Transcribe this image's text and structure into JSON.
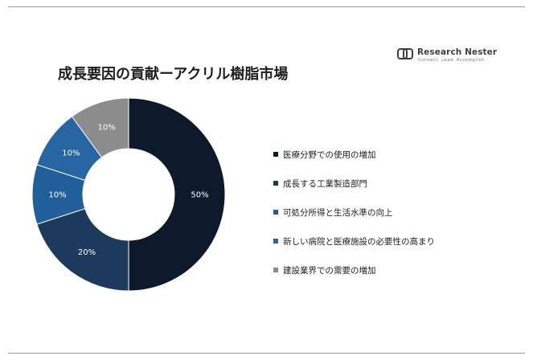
{
  "header": {
    "title": "成長要因の貢献ーアクリル樹脂市場",
    "logo": {
      "name": "Research Nester",
      "tagline": "Connect. Lead. Accomplish"
    }
  },
  "chart_data": {
    "type": "pie",
    "donut": true,
    "title": "成長要因の貢献ーアクリル樹脂市場",
    "legend_position": "right",
    "slices": [
      {
        "label": "医療分野での使用の増加",
        "value": 50,
        "display": "50%",
        "color": "#0d1a2b"
      },
      {
        "label": "成長する工業製造部門",
        "value": 20,
        "display": "20%",
        "color": "#1c3a5c"
      },
      {
        "label": "可処分所得と生活水準の向上",
        "value": 10,
        "display": "10%",
        "color": "#205f99"
      },
      {
        "label": "新しい病院と医療施設の必要性の高まり",
        "value": 10,
        "display": "10%",
        "color": "#2866a3"
      },
      {
        "label": "建設業界での需要の増加",
        "value": 10,
        "display": "10%",
        "color": "#8c8c8c"
      }
    ]
  }
}
